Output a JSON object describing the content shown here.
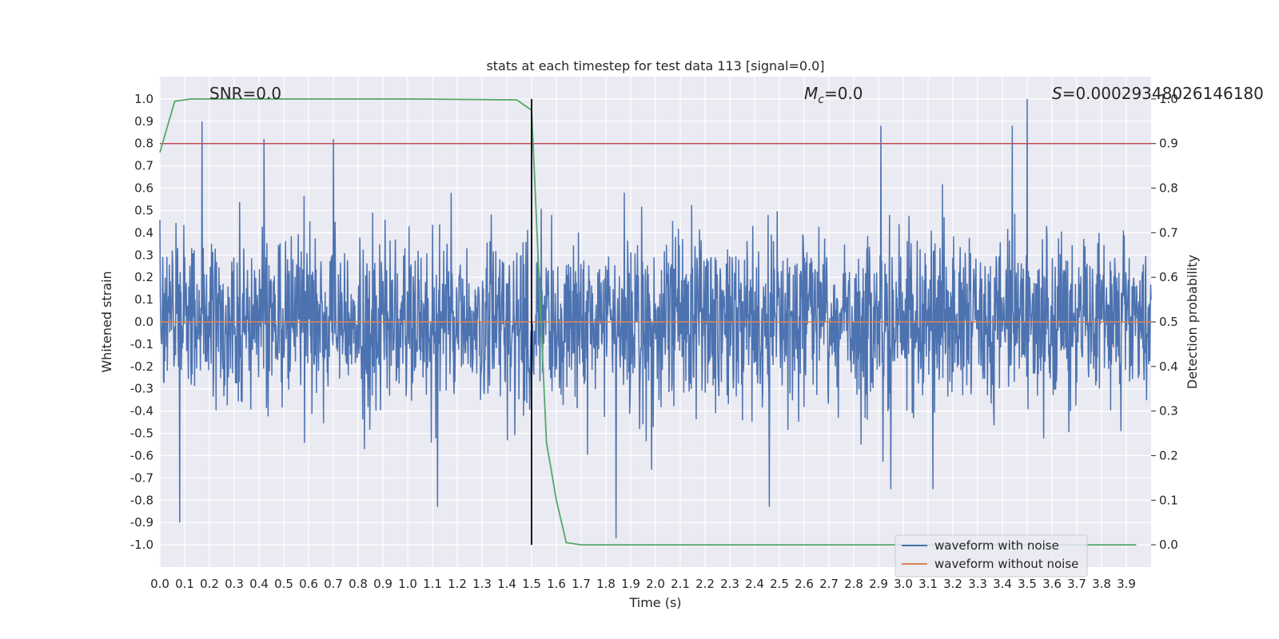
{
  "chart_data": {
    "type": "line",
    "title": "stats at each timestep for test data 113 [signal=0.0]",
    "xlabel": "Time (s)",
    "ylabel": "Whitened strain",
    "y2label": "Detection probability",
    "xlim": [
      0.0,
      4.0
    ],
    "ylim": [
      -1.1,
      1.1
    ],
    "y2lim": [
      -0.05,
      1.05
    ],
    "x_ticks": [
      "0.0",
      "0.1",
      "0.2",
      "0.3",
      "0.4",
      "0.5",
      "0.6",
      "0.7",
      "0.8",
      "0.9",
      "1.0",
      "1.1",
      "1.2",
      "1.3",
      "1.4",
      "1.5",
      "1.6",
      "1.7",
      "1.8",
      "1.9",
      "2.0",
      "2.1",
      "2.2",
      "2.3",
      "2.4",
      "2.5",
      "2.6",
      "2.7",
      "2.8",
      "2.9",
      "3.0",
      "3.1",
      "3.2",
      "3.3",
      "3.4",
      "3.5",
      "3.6",
      "3.7",
      "3.8",
      "3.9"
    ],
    "y_ticks": [
      "1.0",
      "0.9",
      "0.8",
      "0.7",
      "0.6",
      "0.5",
      "0.4",
      "0.3",
      "0.2",
      "0.1",
      "0.0",
      "-0.1",
      "-0.2",
      "-0.3",
      "-0.4",
      "-0.5",
      "-0.6",
      "-0.7",
      "-0.8",
      "-0.9",
      "-1.0"
    ],
    "y2_ticks": [
      "1.0",
      "0.9",
      "0.8",
      "0.7",
      "0.6",
      "0.5",
      "0.4",
      "0.3",
      "0.2",
      "0.1",
      "0.0"
    ],
    "grid": true,
    "legend_position": "bottom-right",
    "annotations": {
      "snr": "SNR=0.0",
      "mc_symbol": "M",
      "mc_sub": "c",
      "mc_value": "=0.0",
      "s_symbol": "S",
      "s_value": "=0.00029348026146180"
    },
    "series": [
      {
        "name": "waveform with noise",
        "color": "#4c72b0",
        "axis": "left",
        "style": "dense noise",
        "x_range": [
          0.0,
          4.0
        ],
        "typical_amplitude": 0.3,
        "peaks": [
          {
            "x": 0.17,
            "y": 0.9
          },
          {
            "x": 0.42,
            "y": 0.82
          },
          {
            "x": 0.7,
            "y": 0.82
          },
          {
            "x": 2.91,
            "y": 0.88
          },
          {
            "x": 3.5,
            "y": 1.0
          },
          {
            "x": 3.44,
            "y": 0.88
          },
          {
            "x": 0.08,
            "y": -0.9
          },
          {
            "x": 1.84,
            "y": -0.97
          },
          {
            "x": 1.12,
            "y": -0.83
          },
          {
            "x": 2.46,
            "y": -0.83
          },
          {
            "x": 2.95,
            "y": -0.75
          },
          {
            "x": 3.12,
            "y": -0.75
          }
        ]
      },
      {
        "name": "waveform without noise",
        "color": "#dd8452",
        "axis": "left",
        "x": [
          0.0,
          4.0
        ],
        "y": [
          0.0,
          0.0
        ]
      },
      {
        "name": "detection probability",
        "color": "#55a868",
        "axis": "right",
        "x": [
          0.0,
          0.06,
          0.125,
          0.25,
          1.0,
          1.44,
          1.5,
          1.53,
          1.56,
          1.6,
          1.64,
          1.7,
          2.0,
          3.94
        ],
        "y": [
          0.88,
          0.995,
          1.0,
          1.0,
          1.0,
          0.998,
          0.975,
          0.6,
          0.23,
          0.1,
          0.005,
          0.0,
          0.0,
          0.0
        ]
      }
    ],
    "threshold_line": {
      "axis": "right",
      "value": 0.9,
      "color": "#c44e52"
    },
    "marker_line": {
      "x": 1.5,
      "color": "#000000"
    }
  }
}
